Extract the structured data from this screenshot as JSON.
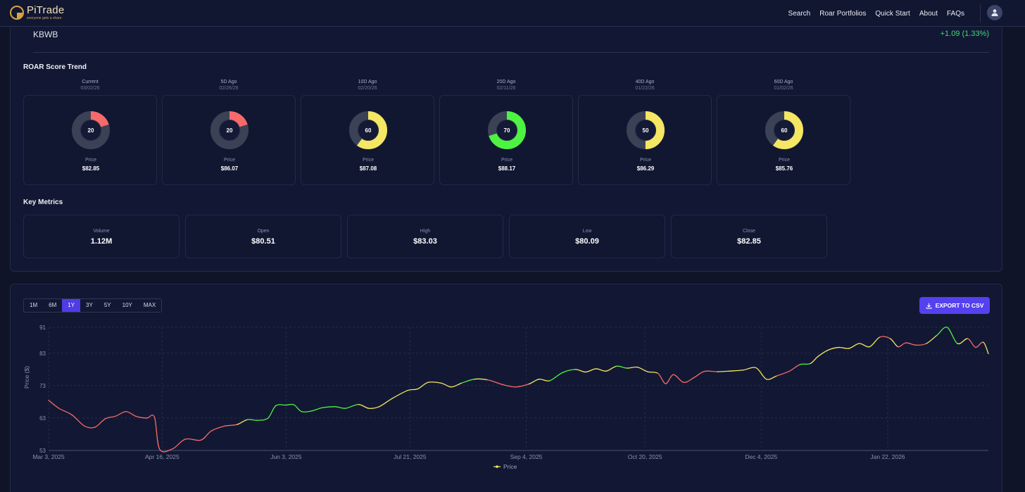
{
  "nav": {
    "brand": "PiTrade",
    "tagline": "everyone gets a share",
    "links": [
      "Search",
      "Roar Portfolios",
      "Quick Start",
      "About",
      "FAQs"
    ]
  },
  "stock": {
    "ticker": "KBWB",
    "change": "+1.09 (1.33%)"
  },
  "roar_trend": {
    "title": "ROAR Score Trend",
    "price_label": "Price",
    "items": [
      {
        "label": "Current",
        "date": "03/02/26",
        "score": "20",
        "score_value": 20,
        "color": "#f86a6a",
        "price": "$82.85"
      },
      {
        "label": "5D Ago",
        "date": "02/26/26",
        "score": "20",
        "score_value": 20,
        "color": "#f86a6a",
        "price": "$86.07"
      },
      {
        "label": "10D Ago",
        "date": "02/20/26",
        "score": "60",
        "score_value": 60,
        "color": "#f5e663",
        "price": "$87.08"
      },
      {
        "label": "20D Ago",
        "date": "02/11/26",
        "score": "70",
        "score_value": 70,
        "color": "#4ef242",
        "price": "$88.17"
      },
      {
        "label": "40D Ago",
        "date": "01/22/26",
        "score": "50",
        "score_value": 50,
        "color": "#f5e663",
        "price": "$86.29"
      },
      {
        "label": "60D Ago",
        "date": "01/02/26",
        "score": "60",
        "score_value": 60,
        "color": "#f5e663",
        "price": "$85.76"
      }
    ]
  },
  "key_metrics": {
    "title": "Key Metrics",
    "items": [
      {
        "label": "Volume",
        "value": "1.12M"
      },
      {
        "label": "Open",
        "value": "$80.51"
      },
      {
        "label": "High",
        "value": "$83.03"
      },
      {
        "label": "Low",
        "value": "$80.09"
      },
      {
        "label": "Close",
        "value": "$82.85"
      }
    ]
  },
  "chart_controls": {
    "ranges": [
      "1M",
      "6M",
      "1Y",
      "3Y",
      "5Y",
      "10Y",
      "MAX"
    ],
    "active_range": "1Y",
    "export_label": "EXPORT TO CSV"
  },
  "colors": {
    "red": "#f86a6a",
    "yellow": "#f5e663",
    "green": "#4ef242",
    "accent": "#5541f0"
  },
  "chart_data": {
    "type": "line",
    "ylabel": "Price ($)",
    "xlabel": "",
    "ylim": [
      53,
      91
    ],
    "yticks": [
      53,
      63,
      73,
      83,
      91
    ],
    "x_tick_labels": [
      "Mar 3, 2025",
      "Apr 16, 2025",
      "Jun 3, 2025",
      "Jul 21, 2025",
      "Sep 4, 2025",
      "Oct 20, 2025",
      "Dec 4, 2025",
      "Jan 22, 2026"
    ],
    "x_tick_dates": [
      "2025-03-03",
      "2025-04-16",
      "2025-06-03",
      "2025-07-21",
      "2025-09-04",
      "2025-10-20",
      "2025-12-04",
      "2026-01-22"
    ],
    "x_range": [
      "2025-03-03",
      "2026-03-02"
    ],
    "grid": true,
    "legend": "bottom-center",
    "series": [
      {
        "name": "Price",
        "points": [
          [
            "2025-03-03",
            68.5
          ],
          [
            "2025-03-07",
            66.0
          ],
          [
            "2025-03-12",
            64.0
          ],
          [
            "2025-03-17",
            60.5
          ],
          [
            "2025-03-21",
            60.2
          ],
          [
            "2025-03-25",
            62.8
          ],
          [
            "2025-03-29",
            63.6
          ],
          [
            "2025-04-02",
            65.0
          ],
          [
            "2025-04-06",
            63.5
          ],
          [
            "2025-04-10",
            63.0
          ],
          [
            "2025-04-13",
            63.3
          ],
          [
            "2025-04-15",
            53.4
          ],
          [
            "2025-04-20",
            53.5
          ],
          [
            "2025-04-25",
            56.5
          ],
          [
            "2025-05-01",
            56.2
          ],
          [
            "2025-05-05",
            59.0
          ],
          [
            "2025-05-10",
            60.5
          ],
          [
            "2025-05-15",
            61.0
          ],
          [
            "2025-05-19",
            62.5
          ],
          [
            "2025-05-23",
            62.3
          ],
          [
            "2025-05-27",
            63.0
          ],
          [
            "2025-05-30",
            66.8
          ],
          [
            "2025-06-03",
            67.0
          ],
          [
            "2025-06-06",
            67.1
          ],
          [
            "2025-06-09",
            65.0
          ],
          [
            "2025-06-13",
            65.2
          ],
          [
            "2025-06-17",
            66.2
          ],
          [
            "2025-06-22",
            66.5
          ],
          [
            "2025-06-26",
            66.0
          ],
          [
            "2025-07-01",
            67.2
          ],
          [
            "2025-07-05",
            66.0
          ],
          [
            "2025-07-09",
            66.5
          ],
          [
            "2025-07-14",
            69.0
          ],
          [
            "2025-07-20",
            71.5
          ],
          [
            "2025-07-24",
            72.0
          ],
          [
            "2025-07-28",
            74.0
          ],
          [
            "2025-08-02",
            73.8
          ],
          [
            "2025-08-06",
            72.6
          ],
          [
            "2025-08-10",
            73.8
          ],
          [
            "2025-08-15",
            75.0
          ],
          [
            "2025-08-20",
            74.8
          ],
          [
            "2025-08-26",
            73.3
          ],
          [
            "2025-08-31",
            72.6
          ],
          [
            "2025-09-05",
            73.5
          ],
          [
            "2025-09-09",
            75.0
          ],
          [
            "2025-09-13",
            74.5
          ],
          [
            "2025-09-18",
            77.0
          ],
          [
            "2025-09-23",
            78.0
          ],
          [
            "2025-09-27",
            77.2
          ],
          [
            "2025-10-01",
            78.2
          ],
          [
            "2025-10-05",
            77.5
          ],
          [
            "2025-10-09",
            79.0
          ],
          [
            "2025-10-13",
            78.4
          ],
          [
            "2025-10-17",
            78.7
          ],
          [
            "2025-10-21",
            77.3
          ],
          [
            "2025-10-25",
            76.8
          ],
          [
            "2025-10-28",
            73.6
          ],
          [
            "2025-10-31",
            76.4
          ],
          [
            "2025-11-04",
            74.0
          ],
          [
            "2025-11-08",
            75.5
          ],
          [
            "2025-11-12",
            77.4
          ],
          [
            "2025-11-17",
            77.3
          ],
          [
            "2025-11-22",
            77.5
          ],
          [
            "2025-11-27",
            77.8
          ],
          [
            "2025-12-02",
            78.5
          ],
          [
            "2025-12-06",
            75.0
          ],
          [
            "2025-12-10",
            76.0
          ],
          [
            "2025-12-15",
            77.5
          ],
          [
            "2025-12-19",
            79.5
          ],
          [
            "2025-12-23",
            79.8
          ],
          [
            "2025-12-26",
            82.0
          ],
          [
            "2025-12-30",
            84.0
          ],
          [
            "2026-01-03",
            84.8
          ],
          [
            "2026-01-07",
            84.5
          ],
          [
            "2026-01-11",
            86.0
          ],
          [
            "2026-01-15",
            85.0
          ],
          [
            "2026-01-19",
            88.0
          ],
          [
            "2026-01-23",
            87.5
          ],
          [
            "2026-01-26",
            85.0
          ],
          [
            "2026-01-29",
            86.2
          ],
          [
            "2026-02-02",
            85.5
          ],
          [
            "2026-02-06",
            86.0
          ],
          [
            "2026-02-10",
            88.5
          ],
          [
            "2026-02-14",
            91.0
          ],
          [
            "2026-02-18",
            86.0
          ],
          [
            "2026-02-22",
            87.5
          ],
          [
            "2026-02-25",
            84.8
          ],
          [
            "2026-02-28",
            86.4
          ],
          [
            "2026-03-02",
            82.85
          ]
        ],
        "segment_colors": [
          "#f86a6a",
          "#f86a6a",
          "#f86a6a",
          "#f86a6a",
          "#f86a6a",
          "#f86a6a",
          "#f86a6a",
          "#f86a6a",
          "#f86a6a",
          "#f86a6a",
          "#f86a6a",
          "#f86a6a",
          "#f86a6a",
          "#f86a6a",
          "#f86a6a",
          "#f86a6a",
          "#f86a6a",
          "#f5e663",
          "#4ef242",
          "#4ef242",
          "#4ef242",
          "#4ef242",
          "#4ef242",
          "#4ef242",
          "#4ef242",
          "#4ef242",
          "#4ef242",
          "#4ef242",
          "#4ef242",
          "#f5e663",
          "#f5e663",
          "#f5e663",
          "#f5e663",
          "#f5e663",
          "#f5e663",
          "#f5e663",
          "#f5e663",
          "#f5e663",
          "#4ef242",
          "#f5e663",
          "#f86a6a",
          "#f86a6a",
          "#f86a6a",
          "#f5e663",
          "#f5e663",
          "#4ef242",
          "#4ef242",
          "#f5e663",
          "#f5e663",
          "#f5e663",
          "#f5e663",
          "#4ef242",
          "#f5e663",
          "#f5e663",
          "#f5e663",
          "#f86a6a",
          "#f86a6a",
          "#f86a6a",
          "#f86a6a",
          "#f86a6a",
          "#f86a6a",
          "#f5e663",
          "#f5e663",
          "#f5e663",
          "#f5e663",
          "#f5e663",
          "#f86a6a",
          "#f86a6a",
          "#4ef242",
          "#f5e663",
          "#f5e663",
          "#f5e663",
          "#f5e663",
          "#f5e663",
          "#f5e663",
          "#f5e663",
          "#f86a6a",
          "#f5e663",
          "#f86a6a",
          "#f86a6a",
          "#f86a6a",
          "#f5e663",
          "#4ef242",
          "#4ef242",
          "#f5e663",
          "#f86a6a",
          "#f86a6a"
        ]
      }
    ]
  }
}
